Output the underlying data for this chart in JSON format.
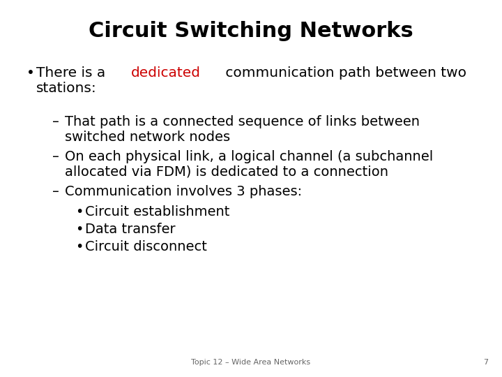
{
  "title": "Circuit Switching Networks",
  "title_fontsize": 22,
  "title_fontweight": "bold",
  "title_color": "#000000",
  "background_color": "#ffffff",
  "footer_text": "Topic 12 – Wide Area Networks",
  "footer_number": "7",
  "footer_fontsize": 8,
  "bullet1_prefix": "There is a ",
  "bullet1_highlight": "dedicated",
  "bullet1_highlight_color": "#cc0000",
  "bullet1_suffix": " communication path between two",
  "bullet1_line2": "stations:",
  "main_fontsize": 14.5,
  "sub_fontsize": 14.0,
  "sub_sub_fontsize": 14.0,
  "font_family": "DejaVu Sans",
  "sub_bullets": [
    "That path is a connected sequence of links between\nswitched network nodes",
    "On each physical link, a logical channel (a subchannel\nallocated via FDM) is dedicated to a connection",
    "Communication involves 3 phases:"
  ],
  "sub_sub_bullets": [
    "Circuit establishment",
    "Data transfer",
    "Circuit disconnect"
  ]
}
